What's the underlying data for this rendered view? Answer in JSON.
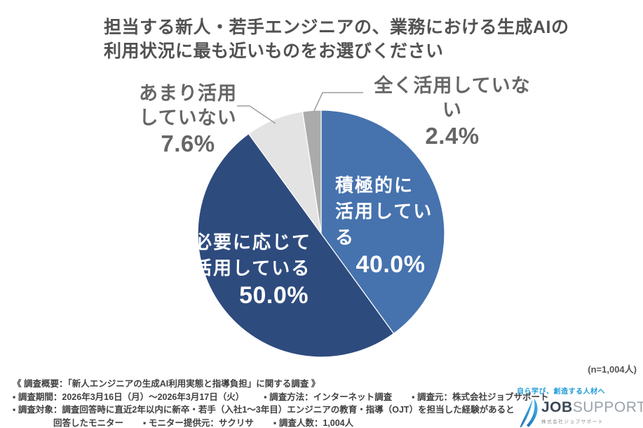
{
  "title": {
    "line1": "担当する新人・若手エンジニアの、業務における生成AIの",
    "line2": "利用状況に最も近いものをお選びください"
  },
  "chart_data": {
    "type": "pie",
    "title": "担当する新人・若手エンジニアの、業務における生成AIの利用状況に最も近いものをお選びください",
    "unit": "%",
    "start_angle": "12-o-clock",
    "direction": "clockwise",
    "sample_size": "(n=1,004人)",
    "slices": [
      {
        "label": "積極的に活用している",
        "value": 40.0,
        "display": "40.0%",
        "color": "#4672AE",
        "label_position": "inside",
        "text_color": "#FFFFFF"
      },
      {
        "label": "必要に応じて活用している",
        "value": 50.0,
        "display": "50.0%",
        "color": "#2E4B7E",
        "label_position": "inside",
        "text_color": "#FFFFFF"
      },
      {
        "label": "あまり活用していない",
        "value": 7.6,
        "display": "7.6%",
        "color": "#E3E3E3",
        "label_position": "outside",
        "text_color": "#666666"
      },
      {
        "label": "全く活用していない",
        "value": 2.4,
        "display": "2.4%",
        "color": "#ABABAB",
        "label_position": "outside",
        "text_color": "#666666"
      }
    ]
  },
  "callouts": {
    "active": {
      "line1": "積極的に",
      "line2": "活用している",
      "pct": "40.0%"
    },
    "as_needed": {
      "line1": "必要に応じて",
      "line2": "活用している",
      "pct": "50.0%"
    },
    "rarely": {
      "line1": "あまり活用",
      "line2": "していない",
      "pct": "7.6%"
    },
    "never": {
      "line1": "全く活用していない",
      "pct": "2.4%"
    }
  },
  "n_label": "(n=1,004人)",
  "survey": {
    "line1": "《 調査概要：「新人エンジニアの生成AI利用実態と指導負担」に関する調査 》",
    "line2a": "▪ 調査期間：2026年3月16日（月）～2026年3月17日（火）",
    "line2b": "▪ 調査方法：インターネット調査",
    "line2c": "▪ 調査元：株式会社ジョブサポート",
    "line3": "▪ 調査対象：調査回答時に直近2年以内に新卒・若手（入社1～3年目）エンジニアの教育・指導（OJT）を担当した経験があると",
    "line4a": "回答したモニター",
    "line4b": "▪ モニター提供元：サクリサ",
    "line4c": "▪ 調査人数：1,004人"
  },
  "logo": {
    "tagline": "自ら学び、創造する人材へ",
    "brand_bold": "JOB",
    "brand_light": "SUPPORT",
    "company": "株式会社ジョブサポート"
  },
  "colors": {
    "pie_blue": "#4672AE",
    "pie_navy": "#2E4B7E",
    "pie_light_gray": "#E3E3E3",
    "pie_gray": "#ABABAB",
    "leader_line": "#9E9E9E",
    "logo_blue": "#1E9BD7",
    "title_text": "#525252",
    "label_text": "#666666"
  }
}
